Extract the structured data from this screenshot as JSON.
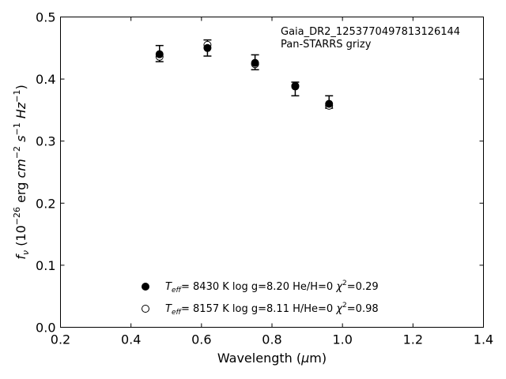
{
  "chart_data": {
    "type": "scatter",
    "xlabel": "Wavelength (μm)",
    "ylabel": "fν (10⁻²⁶ erg cm⁻² s⁻¹ Hz⁻¹)",
    "xlim": [
      0.2,
      1.4
    ],
    "ylim": [
      0.0,
      0.5
    ],
    "xticks": [
      "0.2",
      "0.4",
      "0.6",
      "0.8",
      "1.0",
      "1.2",
      "1.4"
    ],
    "yticks": [
      "0.0",
      "0.1",
      "0.2",
      "0.3",
      "0.4",
      "0.5"
    ],
    "grid": false,
    "legend_position": "lower-center",
    "annotations": [
      "Gaia_DR2_1253770497813126144",
      "Pan-STARRS grizy"
    ],
    "series": [
      {
        "name": "Teff= 8430 K log g=8.20 He/H=0 χ²=0.29",
        "marker": "filled-circle",
        "x": [
          0.481,
          0.617,
          0.752,
          0.866,
          0.962
        ],
        "y": [
          0.44,
          0.45,
          0.426,
          0.389,
          0.36
        ]
      },
      {
        "name": "Teff= 8157 K log g=8.11 H/He=0 χ²=0.98",
        "marker": "open-circle",
        "x": [
          0.481,
          0.617,
          0.752,
          0.866,
          0.962
        ],
        "y": [
          0.436,
          0.455,
          0.424,
          0.388,
          0.357
        ]
      }
    ],
    "observed": {
      "x": [
        0.481,
        0.617,
        0.752,
        0.866,
        0.962
      ],
      "y": [
        0.441,
        0.45,
        0.427,
        0.384,
        0.363
      ],
      "yerr": [
        0.013,
        0.013,
        0.012,
        0.011,
        0.01
      ]
    }
  },
  "legend": {
    "entries": [
      {
        "teff": "8430 K",
        "logg": "log g=8.20",
        "comp": "He/H=0",
        "chi2": "=0.29"
      },
      {
        "teff": "8157 K",
        "logg": "log g=8.11",
        "comp": "H/He=0",
        "chi2": "=0.98"
      }
    ]
  }
}
